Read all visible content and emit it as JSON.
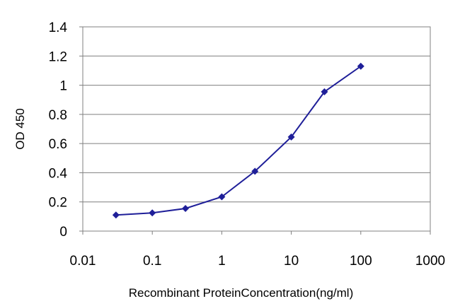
{
  "chart_data": {
    "type": "line",
    "title": "",
    "xlabel": "Recombinant ProteinConcentration(ng/ml)",
    "ylabel": "OD 450",
    "x_scale": "log",
    "xlim": [
      0.01,
      1000
    ],
    "ylim": [
      0,
      1.4
    ],
    "x_ticks": [
      "0.01",
      "0.1",
      "1",
      "10",
      "100",
      "1000"
    ],
    "y_ticks": [
      "0",
      "0.2",
      "0.4",
      "0.6",
      "0.8",
      "1",
      "1.2",
      "1.4"
    ],
    "grid": "horizontal",
    "legend": "none",
    "series": [
      {
        "color": "#1f1f99",
        "marker": "diamond",
        "points": [
          {
            "x": 0.03,
            "y": 0.11
          },
          {
            "x": 0.1,
            "y": 0.125
          },
          {
            "x": 0.3,
            "y": 0.155
          },
          {
            "x": 1,
            "y": 0.235
          },
          {
            "x": 3,
            "y": 0.41
          },
          {
            "x": 10,
            "y": 0.645
          },
          {
            "x": 30,
            "y": 0.955
          },
          {
            "x": 100,
            "y": 1.13
          }
        ]
      }
    ]
  }
}
